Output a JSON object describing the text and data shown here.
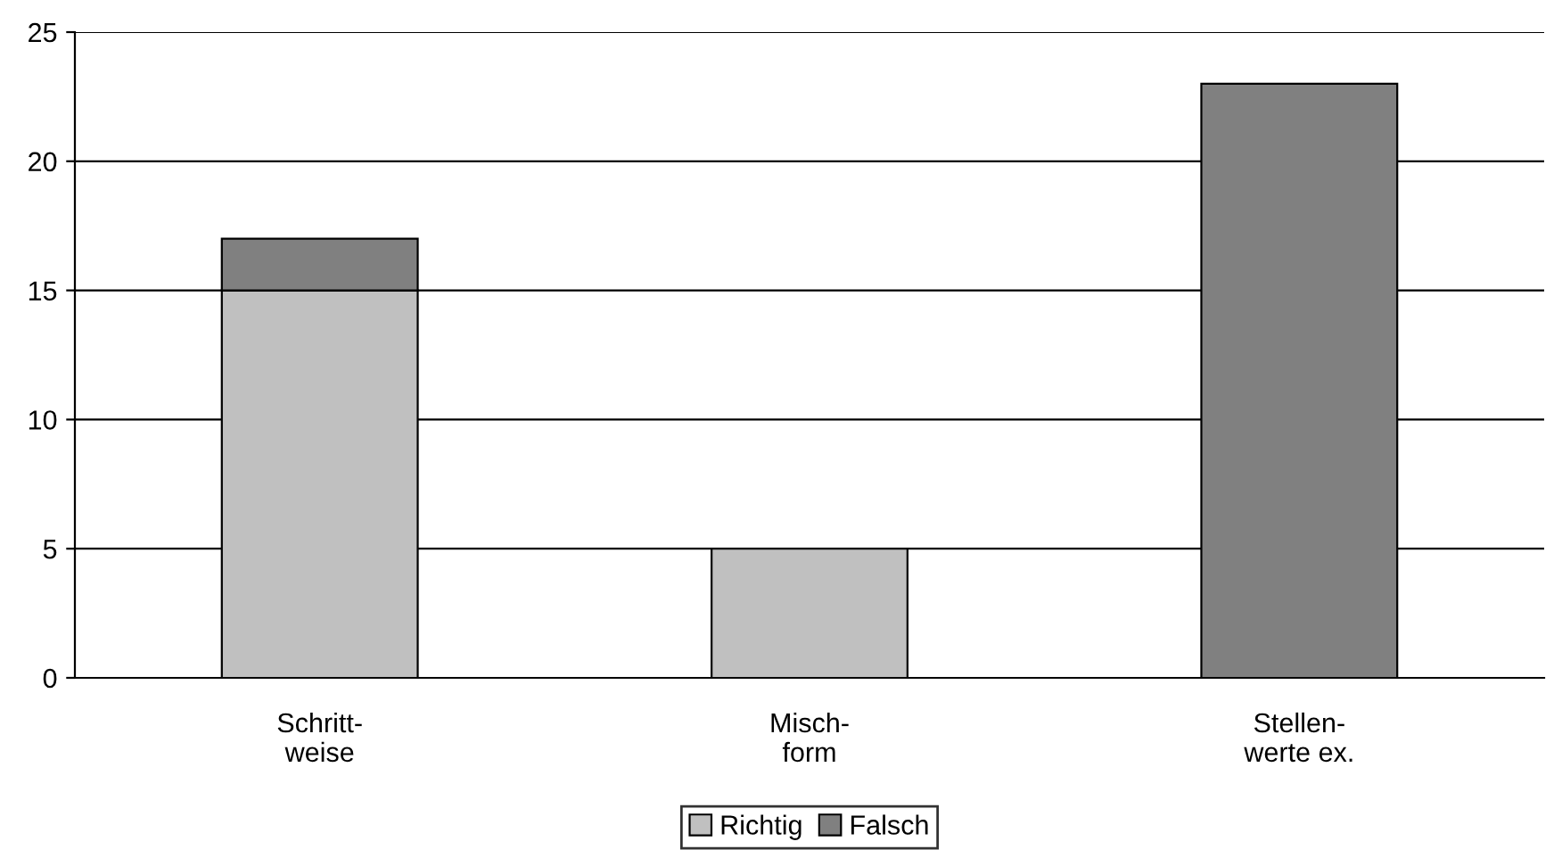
{
  "chart_data": {
    "type": "bar",
    "stacked": true,
    "categories": [
      "Schritt-\nweise",
      "Misch-\nform",
      "Stellen-\nwerte ex."
    ],
    "series": [
      {
        "name": "Richtig",
        "color": "#c0c0c0",
        "values": [
          15,
          5,
          0
        ]
      },
      {
        "name": "Falsch",
        "color": "#808080",
        "values": [
          2,
          0,
          23
        ]
      }
    ],
    "ylim": [
      0,
      25
    ],
    "yticks": [
      0,
      5,
      10,
      15,
      20,
      25
    ],
    "grid": "y",
    "legend": "bottom"
  }
}
